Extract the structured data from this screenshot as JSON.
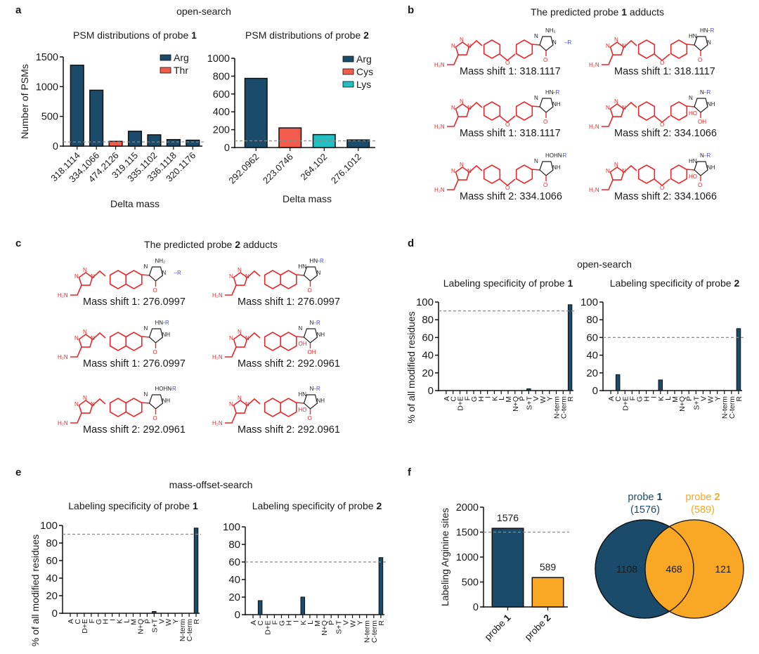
{
  "colors": {
    "arg": "#1b4b6b",
    "thr": "#f25c4c",
    "cys": "#f25c4c",
    "lys": "#1fbfc3",
    "probe1": "#1b4b6b",
    "probe2": "#f9a825",
    "probe_red": "#e8282b",
    "r_blue": "#4a4ad8",
    "dashed": "#8a8a8a"
  },
  "panels": {
    "a": {
      "letter": "a",
      "section_title": "open-search"
    },
    "b": {
      "letter": "b",
      "title_prefix": "The predicted probe ",
      "title_bold": "1",
      "title_suffix": " adducts",
      "captions": [
        "Mass shift 1: 318.1117",
        "Mass shift 1: 318.1117",
        "Mass shift 1: 318.1117",
        "Mass shift 2: 334.1066",
        "Mass shift 2: 334.1066",
        "Mass shift 2: 334.1066"
      ],
      "headgroups": [
        {
          "top": "NH₂",
          "ring_left": "N",
          "ring_right": "N–R",
          "bottom": "O",
          "extra": ""
        },
        {
          "top": "HN–R",
          "ring_left": "HN",
          "ring_right": "N",
          "bottom": "O",
          "extra": ""
        },
        {
          "top": "HN–R",
          "ring_left": "N",
          "ring_right": "NH",
          "bottom": "O",
          "extra": ""
        },
        {
          "top": "N–R",
          "ring_left": "N",
          "ring_right": "NH",
          "bottom": "OH",
          "extra": "HO"
        },
        {
          "top": "HOHN–R",
          "ring_left": "N",
          "ring_right": "NH",
          "bottom": "O",
          "extra": ""
        },
        {
          "top": "N–R",
          "ring_left": "HN",
          "ring_right": "NH",
          "bottom": "O",
          "extra": "HO"
        }
      ]
    },
    "c": {
      "letter": "c",
      "title_prefix": "The predicted probe ",
      "title_bold": "2",
      "title_suffix": " adducts",
      "captions": [
        "Mass shift 1: 276.0997",
        "Mass shift 1: 276.0997",
        "Mass shift 1: 276.0997",
        "Mass shift 2: 292.0961",
        "Mass shift 2: 292.0961",
        "Mass shift 2: 292.0961"
      ],
      "headgroups": [
        {
          "top": "NH₂",
          "ring_left": "N",
          "ring_right": "N–R",
          "bottom": "O",
          "extra": ""
        },
        {
          "top": "HN–R",
          "ring_left": "HN",
          "ring_right": "N",
          "bottom": "O",
          "extra": ""
        },
        {
          "top": "HN–R",
          "ring_left": "N",
          "ring_right": "NH",
          "bottom": "O",
          "extra": ""
        },
        {
          "top": "N–R",
          "ring_left": "N",
          "ring_right": "NH",
          "bottom": "OH",
          "extra": "OH"
        },
        {
          "top": "HOHN–R",
          "ring_left": "N",
          "ring_right": "NH",
          "bottom": "O",
          "extra": ""
        },
        {
          "top": "N–R",
          "ring_left": "HN",
          "ring_right": "NH",
          "bottom": "O",
          "extra": "HO"
        }
      ]
    },
    "d": {
      "letter": "d",
      "section_title": "open-search"
    },
    "e": {
      "letter": "e",
      "section_title": "mass-offset-search"
    },
    "f": {
      "letter": "f"
    }
  },
  "chem_labels": {
    "triazole_n1": "N",
    "triazole_n2": "N",
    "triazole_n3": "N",
    "amine": "H₂N",
    "ether_o": "O"
  },
  "chart_data": [
    {
      "id": "a1",
      "type": "bar",
      "title": "PSM distributions of probe ",
      "title_bold": "1",
      "xlabel": "Delta mass",
      "ylabel": "Number of PSMs",
      "ylim": [
        0,
        1500
      ],
      "yticks": [
        0,
        500,
        1000,
        1500
      ],
      "categories": [
        "318.1114",
        "334.1066",
        "474.2126",
        "319.115",
        "335.1102",
        "336.1118",
        "320.1176"
      ],
      "values": [
        1360,
        940,
        80,
        250,
        190,
        110,
        100
      ],
      "residue": [
        "Arg",
        "Arg",
        "Thr",
        "Arg",
        "Arg",
        "Arg",
        "Arg"
      ],
      "threshold": 70,
      "legend": [
        {
          "label": "Arg",
          "color_key": "arg"
        },
        {
          "label": "Thr",
          "color_key": "thr"
        }
      ],
      "legend_position": "top-right"
    },
    {
      "id": "a2",
      "type": "bar",
      "title": "PSM distributions of probe ",
      "title_bold": "2",
      "xlabel": "Delta mass",
      "ylabel": "",
      "ylim": [
        0,
        1000
      ],
      "yticks": [
        0,
        200,
        400,
        600,
        800,
        1000
      ],
      "categories": [
        "292.0962",
        "223.0746",
        "264.102",
        "276.1012"
      ],
      "values": [
        775,
        220,
        145,
        85
      ],
      "residue": [
        "Arg",
        "Cys",
        "Lys",
        "Arg"
      ],
      "threshold": 75,
      "legend": [
        {
          "label": "Arg",
          "color_key": "arg"
        },
        {
          "label": "Cys",
          "color_key": "cys"
        },
        {
          "label": "Lys",
          "color_key": "lys"
        }
      ],
      "legend_position": "top-right"
    },
    {
      "id": "d1",
      "type": "bar",
      "title": "Labeling specificity of probe ",
      "title_bold": "1",
      "xlabel": "",
      "ylabel": "% of all modified residues",
      "ylim": [
        0,
        100
      ],
      "yticks": [
        0,
        20,
        40,
        60,
        80,
        100
      ],
      "categories": [
        "A",
        "C",
        "D+E",
        "F",
        "G",
        "H",
        "I",
        "K",
        "L",
        "M",
        "N+Q",
        "P",
        "S+T",
        "V",
        "W",
        "Y",
        "N-term",
        "C-term",
        "R"
      ],
      "values": [
        0,
        0,
        0,
        0,
        0,
        0,
        0,
        0,
        0,
        0,
        0,
        0,
        2,
        0,
        0,
        0,
        0,
        0,
        97
      ],
      "threshold": 90
    },
    {
      "id": "d2",
      "type": "bar",
      "title": "Labeling specificity of probe ",
      "title_bold": "2",
      "xlabel": "",
      "ylabel": "",
      "ylim": [
        0,
        100
      ],
      "yticks": [
        0,
        20,
        40,
        60,
        80,
        100
      ],
      "categories": [
        "A",
        "C",
        "D+E",
        "F",
        "G",
        "H",
        "I",
        "K",
        "L",
        "M",
        "N+Q",
        "P",
        "S+T",
        "V",
        "W",
        "Y",
        "N-term",
        "C-term",
        "R"
      ],
      "values": [
        0,
        18,
        0,
        0,
        0,
        0,
        0,
        12,
        0,
        0,
        0,
        0,
        0,
        0,
        0,
        0,
        0,
        0,
        70
      ],
      "threshold": 60
    },
    {
      "id": "e1",
      "type": "bar",
      "title": "Labeling specificity of probe ",
      "title_bold": "1",
      "xlabel": "",
      "ylabel": "% of all modified residues",
      "ylim": [
        0,
        100
      ],
      "yticks": [
        0,
        20,
        40,
        60,
        80,
        100
      ],
      "categories": [
        "A",
        "C",
        "D+E",
        "F",
        "G",
        "H",
        "I",
        "K",
        "L",
        "M",
        "N+Q",
        "P",
        "S+T",
        "V",
        "W",
        "Y",
        "N-term",
        "C-term",
        "R"
      ],
      "values": [
        0,
        0,
        0,
        0,
        0,
        0,
        0,
        0,
        0,
        0,
        0,
        0,
        2,
        0,
        0,
        0,
        0,
        0,
        97
      ],
      "threshold": 90
    },
    {
      "id": "e2",
      "type": "bar",
      "title": "Labeling specificity of probe ",
      "title_bold": "2",
      "xlabel": "",
      "ylabel": "",
      "ylim": [
        0,
        100
      ],
      "yticks": [
        0,
        20,
        40,
        60,
        80,
        100
      ],
      "categories": [
        "A",
        "C",
        "D+E",
        "F",
        "G",
        "H",
        "I",
        "K",
        "L",
        "M",
        "N+Q",
        "P",
        "S+T",
        "V",
        "W",
        "Y",
        "N-term",
        "C-term",
        "R"
      ],
      "values": [
        0,
        16,
        0,
        0,
        0,
        0,
        0,
        20,
        0,
        0,
        0,
        0,
        0,
        0,
        0,
        0,
        0,
        0,
        65
      ],
      "threshold": 60
    },
    {
      "id": "f1",
      "type": "bar",
      "title": "",
      "xlabel": "",
      "ylabel": "Labeling Arginine sites",
      "ylim": [
        0,
        2000
      ],
      "yticks": [
        0,
        500,
        1000,
        1500,
        2000
      ],
      "categories": [
        "probe 1",
        "probe 2"
      ],
      "category_prefix": "probe ",
      "category_bold": [
        "1",
        "2"
      ],
      "values": [
        1576,
        589
      ],
      "data_labels": [
        "1576",
        "589"
      ],
      "threshold": 1500
    },
    {
      "id": "f2",
      "type": "venn",
      "sets": [
        {
          "name_prefix": "probe ",
          "name_bold": "1",
          "total_label": "(1576)",
          "total": 1576,
          "only": 1108,
          "only_label": "1108",
          "color_key": "probe1"
        },
        {
          "name_prefix": "probe ",
          "name_bold": "2",
          "total_label": "(589)",
          "total": 589,
          "only": 121,
          "only_label": "121",
          "color_key": "probe2"
        }
      ],
      "intersection": 468,
      "intersection_label": "468"
    }
  ]
}
